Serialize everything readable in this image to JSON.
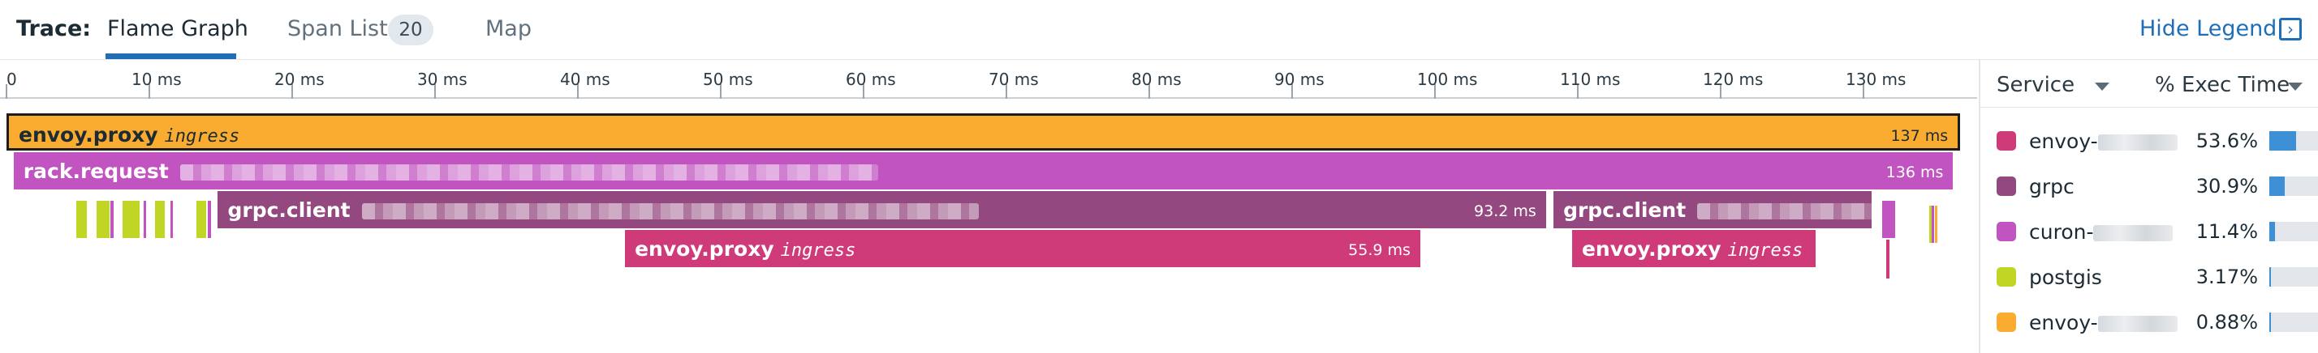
{
  "header": {
    "trace_label": "Trace:",
    "tabs": [
      {
        "label": "Flame Graph",
        "active": true
      },
      {
        "label": "Span List",
        "count": "20"
      },
      {
        "label": "Map"
      }
    ],
    "hide_legend_label": "Hide Legend"
  },
  "timeline": {
    "max_ms": 137,
    "ticks": [
      {
        "ms": 0,
        "label": "0"
      },
      {
        "ms": 10,
        "label": "10 ms"
      },
      {
        "ms": 20,
        "label": "20 ms"
      },
      {
        "ms": 30,
        "label": "30 ms"
      },
      {
        "ms": 40,
        "label": "40 ms"
      },
      {
        "ms": 50,
        "label": "50 ms"
      },
      {
        "ms": 60,
        "label": "60 ms"
      },
      {
        "ms": 70,
        "label": "70 ms"
      },
      {
        "ms": 80,
        "label": "80 ms"
      },
      {
        "ms": 90,
        "label": "90 ms"
      },
      {
        "ms": 100,
        "label": "100 ms"
      },
      {
        "ms": 110,
        "label": "110 ms"
      },
      {
        "ms": 120,
        "label": "120 ms"
      },
      {
        "ms": 130,
        "label": "130 ms"
      }
    ]
  },
  "spans": [
    {
      "name": "envoy.proxy",
      "resource": "ingress",
      "duration": "137 ms",
      "start_ms": 0,
      "duration_ms": 137,
      "depth": 0,
      "color": "#f9ac2f",
      "selected": true,
      "redacted": false
    },
    {
      "name": "rack.request",
      "resource": "",
      "duration": "136 ms",
      "start_ms": 0.5,
      "duration_ms": 136,
      "depth": 1,
      "color": "#c154c1",
      "selected": false,
      "redacted": true
    },
    {
      "name": "grpc.client",
      "resource": "",
      "duration": "93.2 ms",
      "start_ms": 14.8,
      "duration_ms": 93.2,
      "depth": 2,
      "color": "#93487f",
      "selected": false,
      "redacted": true
    },
    {
      "name": "grpc.client",
      "resource": "",
      "duration": "",
      "start_ms": 108.3,
      "duration_ms": 22.5,
      "depth": 2,
      "color": "#93487f",
      "selected": false,
      "redacted": true
    },
    {
      "name": "envoy.proxy",
      "resource": "ingress",
      "duration": "55.9 ms",
      "start_ms": 43.3,
      "duration_ms": 55.9,
      "depth": 3,
      "color": "#cf3a78",
      "selected": false,
      "redacted": false
    },
    {
      "name": "envoy.proxy",
      "resource": "ingress",
      "duration": "",
      "start_ms": 109.6,
      "duration_ms": 17.3,
      "depth": 3,
      "color": "#cf3a78",
      "selected": false,
      "redacted": false
    }
  ],
  "mini_spans": [
    {
      "start_ms": 4.9,
      "duration_ms": 0.7,
      "color": "#c1d524"
    },
    {
      "start_ms": 6.3,
      "duration_ms": 0.9,
      "color": "#c1d524"
    },
    {
      "start_ms": 7.3,
      "duration_ms": 0.2,
      "color": "#c154c1"
    },
    {
      "start_ms": 8.1,
      "duration_ms": 1.2,
      "color": "#c1d524"
    },
    {
      "start_ms": 9.6,
      "duration_ms": 0.2,
      "color": "#c154c1"
    },
    {
      "start_ms": 10.4,
      "duration_ms": 0.7,
      "color": "#c1d524"
    },
    {
      "start_ms": 11.5,
      "duration_ms": 0.1,
      "color": "#c154c1"
    },
    {
      "start_ms": 13.3,
      "duration_ms": 0.7,
      "color": "#c1d524"
    },
    {
      "start_ms": 14.1,
      "duration_ms": 0.2,
      "color": "#c154c1"
    },
    {
      "start_ms": 131.3,
      "duration_ms": 0.9,
      "color": "#c154c1"
    },
    {
      "start_ms": 131.6,
      "duration_ms": 0.2,
      "color": "#cf3a78"
    },
    {
      "start_ms": 134.6,
      "duration_ms": 0.1,
      "color": "#c1d524"
    },
    {
      "start_ms": 134.8,
      "duration_ms": 0.1,
      "color": "#c154c1"
    },
    {
      "start_ms": 135.0,
      "duration_ms": 0.1,
      "color": "#f9ac2f"
    }
  ],
  "legend": {
    "col_service": "Service",
    "col_exec": "% Exec Time",
    "rows": [
      {
        "service": "envoy-",
        "redacted": true,
        "pct": "53.6%",
        "fraction": 0.536,
        "color": "#cf3a78"
      },
      {
        "service": "grpc",
        "redacted": false,
        "pct": "30.9%",
        "fraction": 0.309,
        "color": "#93487f"
      },
      {
        "service": "curon-",
        "redacted": true,
        "pct": "11.4%",
        "fraction": 0.114,
        "color": "#c154c1"
      },
      {
        "service": "postgis",
        "redacted": false,
        "pct": "3.17%",
        "fraction": 0.0317,
        "color": "#c1d524"
      },
      {
        "service": "envoy-",
        "redacted": true,
        "pct": "0.88%",
        "fraction": 0.0088,
        "color": "#f9ac2f"
      }
    ]
  }
}
